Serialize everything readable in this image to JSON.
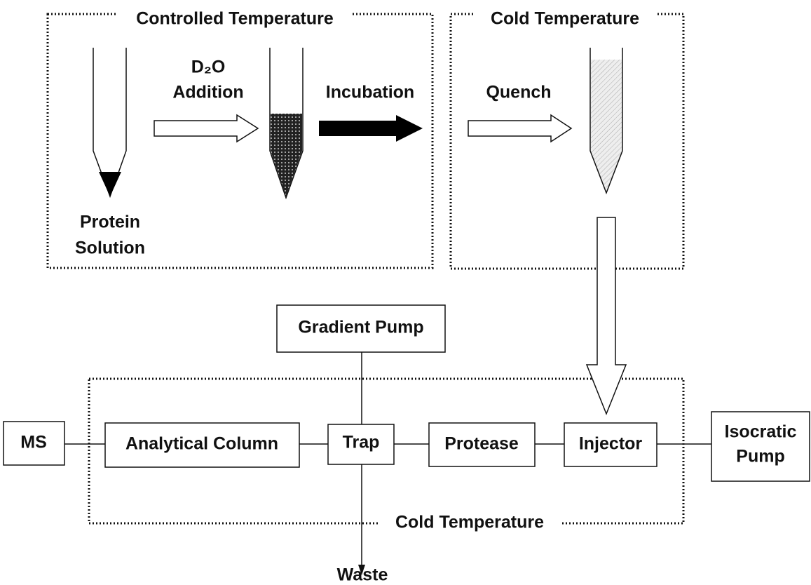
{
  "regions": [
    {
      "label": "Controlled Temperature"
    },
    {
      "label": "Cold Temperature"
    },
    {
      "label": "Cold Temperature"
    }
  ],
  "steps": {
    "protein_solution": [
      "Protein",
      "Solution"
    ],
    "d2o_addition": [
      "D₂O",
      "Addition"
    ],
    "incubation": "Incubation",
    "quench": "Quench"
  },
  "nodes": [
    {
      "label": "Gradient Pump"
    },
    {
      "label": "MS"
    },
    {
      "label": "Analytical Column"
    },
    {
      "label": "Trap"
    },
    {
      "label": "Protease"
    },
    {
      "label": "Injector"
    },
    {
      "label": [
        "Isocratic",
        "Pump"
      ]
    }
  ],
  "outputs": {
    "waste": "Waste"
  }
}
